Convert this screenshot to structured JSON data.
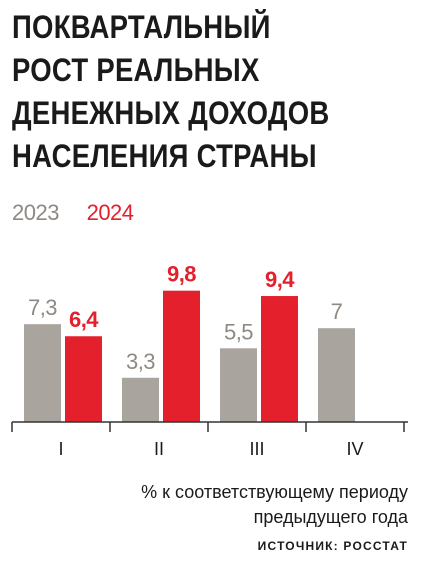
{
  "title_lines": [
    "ПОКВАРТАЛЬНЫЙ",
    "РОСТ РЕАЛЬНЫХ",
    "ДЕНЕЖНЫХ ДОХОДОВ",
    "НАСЕЛЕНИЯ СТРАНЫ"
  ],
  "note_lines": [
    "% к соответствующему периоду",
    "предыдущего года"
  ],
  "source": "ИСТОЧНИК: РОССТАТ",
  "colors": {
    "series_2023": "#aaa49f",
    "series_2024": "#e3202b",
    "label_2023": "#8f8984",
    "axis": "#333333"
  },
  "chart_data": {
    "type": "bar",
    "categories": [
      "I",
      "II",
      "III",
      "IV"
    ],
    "series": [
      {
        "name": "2023",
        "values": [
          7.3,
          3.3,
          5.5,
          7
        ],
        "labels": [
          "7,3",
          "3,3",
          "5,5",
          "7"
        ]
      },
      {
        "name": "2024",
        "values": [
          6.4,
          9.8,
          9.4,
          null
        ],
        "labels": [
          "6,4",
          "9,8",
          "9,4",
          null
        ]
      }
    ],
    "legend_position": "top-left",
    "grid": false
  }
}
